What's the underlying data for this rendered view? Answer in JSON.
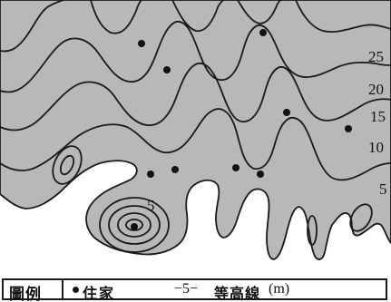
{
  "map": {
    "background_color": "#b8b8b8",
    "contour_labels": [
      "25",
      "20",
      "15",
      "10",
      "5",
      "5"
    ],
    "house_count": 11
  },
  "legend": {
    "title": "圖例",
    "house_symbol_icon": "filled-dot-icon",
    "house_label": "住家",
    "contour_sample": "−5−",
    "contour_label": "等高線",
    "contour_unit": "(m)"
  }
}
